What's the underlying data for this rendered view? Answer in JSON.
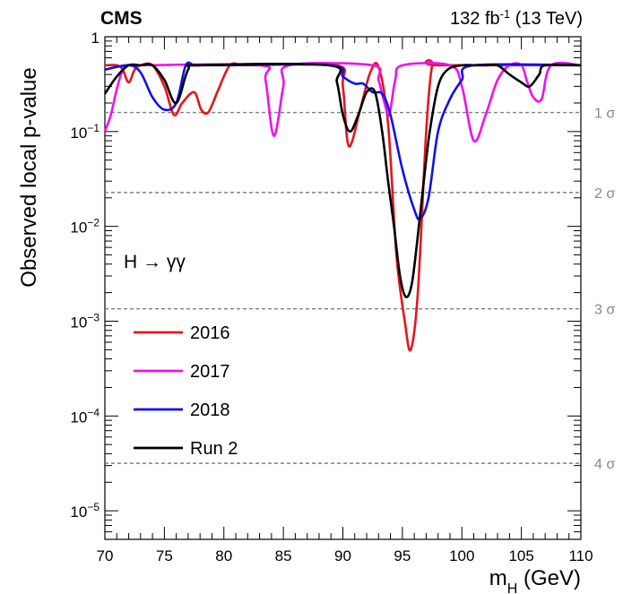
{
  "header": {
    "experiment": "CMS",
    "lumi_main": "132 fb",
    "lumi_sup": "-1",
    "lumi_energy": " (13 TeV)"
  },
  "annotation": {
    "process": "H → γγ"
  },
  "chart_data": {
    "type": "line",
    "xlabel_main": "m",
    "xlabel_sub": "H",
    "xlabel_unit": " (GeV)",
    "ylabel": "Observed local p-value",
    "xlim": [
      70,
      110
    ],
    "ylim": [
      5e-06,
      1
    ],
    "y_scale": "log",
    "grid": false,
    "legend_position": "bottom-left",
    "x_ticks": [
      70,
      75,
      80,
      85,
      90,
      95,
      100,
      105,
      110
    ],
    "y_ticks": [
      {
        "value": 1,
        "base": "1",
        "exp": ""
      },
      {
        "value": 0.1,
        "base": "10",
        "exp": "−1"
      },
      {
        "value": 0.01,
        "base": "10",
        "exp": "−2"
      },
      {
        "value": 0.001,
        "base": "10",
        "exp": "−3"
      },
      {
        "value": 0.0001,
        "base": "10",
        "exp": "−4"
      },
      {
        "value": 1e-05,
        "base": "10",
        "exp": "−5"
      }
    ],
    "sigma_lines": [
      {
        "label": "1 σ",
        "p": 0.1587
      },
      {
        "label": "2 σ",
        "p": 0.02275
      },
      {
        "label": "3 σ",
        "p": 0.00135
      },
      {
        "label": "4 σ",
        "p": 3.17e-05
      }
    ],
    "series": [
      {
        "name": "2016",
        "color": "#e8141b",
        "x": [
          70,
          71,
          71.5,
          72,
          72.5,
          73,
          74,
          75,
          75.8,
          76.5,
          77.5,
          78.1,
          78.7,
          79.5,
          80.5,
          81.5,
          82.5,
          89.5,
          90,
          90.5,
          91.5,
          92.3,
          93,
          93.8,
          94.5,
          95.2,
          95.7,
          96.3,
          97,
          97.5,
          98,
          110
        ],
        "y": [
          0.5,
          0.5,
          0.45,
          0.33,
          0.45,
          0.5,
          0.5,
          0.3,
          0.15,
          0.2,
          0.26,
          0.17,
          0.16,
          0.27,
          0.5,
          0.5,
          0.5,
          0.5,
          0.3,
          0.07,
          0.18,
          0.42,
          0.48,
          0.12,
          0.005,
          0.001,
          0.0005,
          0.002,
          0.1,
          0.5,
          0.5,
          0.5
        ]
      },
      {
        "name": "2017",
        "color": "#ef10ef",
        "x": [
          70,
          70.5,
          71,
          71.5,
          72,
          73,
          83,
          83.5,
          84.2,
          85,
          85.5,
          92.5,
          93,
          93.5,
          93.9,
          94.4,
          95,
          99,
          100,
          101,
          102,
          103,
          104,
          105,
          105.5,
          106,
          106.7,
          107.5,
          110
        ],
        "y": [
          0.1,
          0.15,
          0.28,
          0.45,
          0.5,
          0.5,
          0.5,
          0.35,
          0.09,
          0.3,
          0.5,
          0.5,
          0.35,
          0.2,
          0.15,
          0.35,
          0.5,
          0.5,
          0.3,
          0.08,
          0.15,
          0.35,
          0.5,
          0.5,
          0.33,
          0.23,
          0.22,
          0.5,
          0.5
        ]
      },
      {
        "name": "2018",
        "color": "#1010e8",
        "x": [
          70,
          72,
          73,
          74,
          75,
          76,
          76.8,
          77.5,
          78.5,
          79.5,
          89,
          90,
          91,
          91.7,
          92.5,
          93.3,
          94,
          95,
          96,
          96.5,
          97.2,
          98,
          99,
          100,
          101,
          110
        ],
        "y": [
          0.45,
          0.5,
          0.42,
          0.23,
          0.17,
          0.2,
          0.5,
          0.5,
          0.5,
          0.5,
          0.5,
          0.38,
          0.32,
          0.32,
          0.26,
          0.25,
          0.15,
          0.04,
          0.015,
          0.012,
          0.02,
          0.1,
          0.22,
          0.35,
          0.5,
          0.5
        ]
      },
      {
        "name": "Run 2",
        "color": "#000000",
        "x": [
          70,
          71,
          72,
          73,
          74,
          75,
          76,
          77,
          78,
          88.8,
          89.5,
          90,
          90.6,
          91.3,
          92,
          92.7,
          93.3,
          93.8,
          94.3,
          94.8,
          95.3,
          95.8,
          96.3,
          96.8,
          97.3,
          98,
          98.8,
          100,
          101,
          102,
          103,
          104,
          105,
          105.7,
          106.5,
          107,
          110
        ],
        "y": [
          0.25,
          0.38,
          0.5,
          0.5,
          0.5,
          0.35,
          0.2,
          0.45,
          0.5,
          0.5,
          0.33,
          0.15,
          0.1,
          0.15,
          0.26,
          0.26,
          0.1,
          0.03,
          0.01,
          0.003,
          0.0018,
          0.0025,
          0.008,
          0.03,
          0.1,
          0.3,
          0.45,
          0.5,
          0.5,
          0.5,
          0.5,
          0.4,
          0.33,
          0.3,
          0.4,
          0.5,
          0.5
        ]
      }
    ]
  }
}
